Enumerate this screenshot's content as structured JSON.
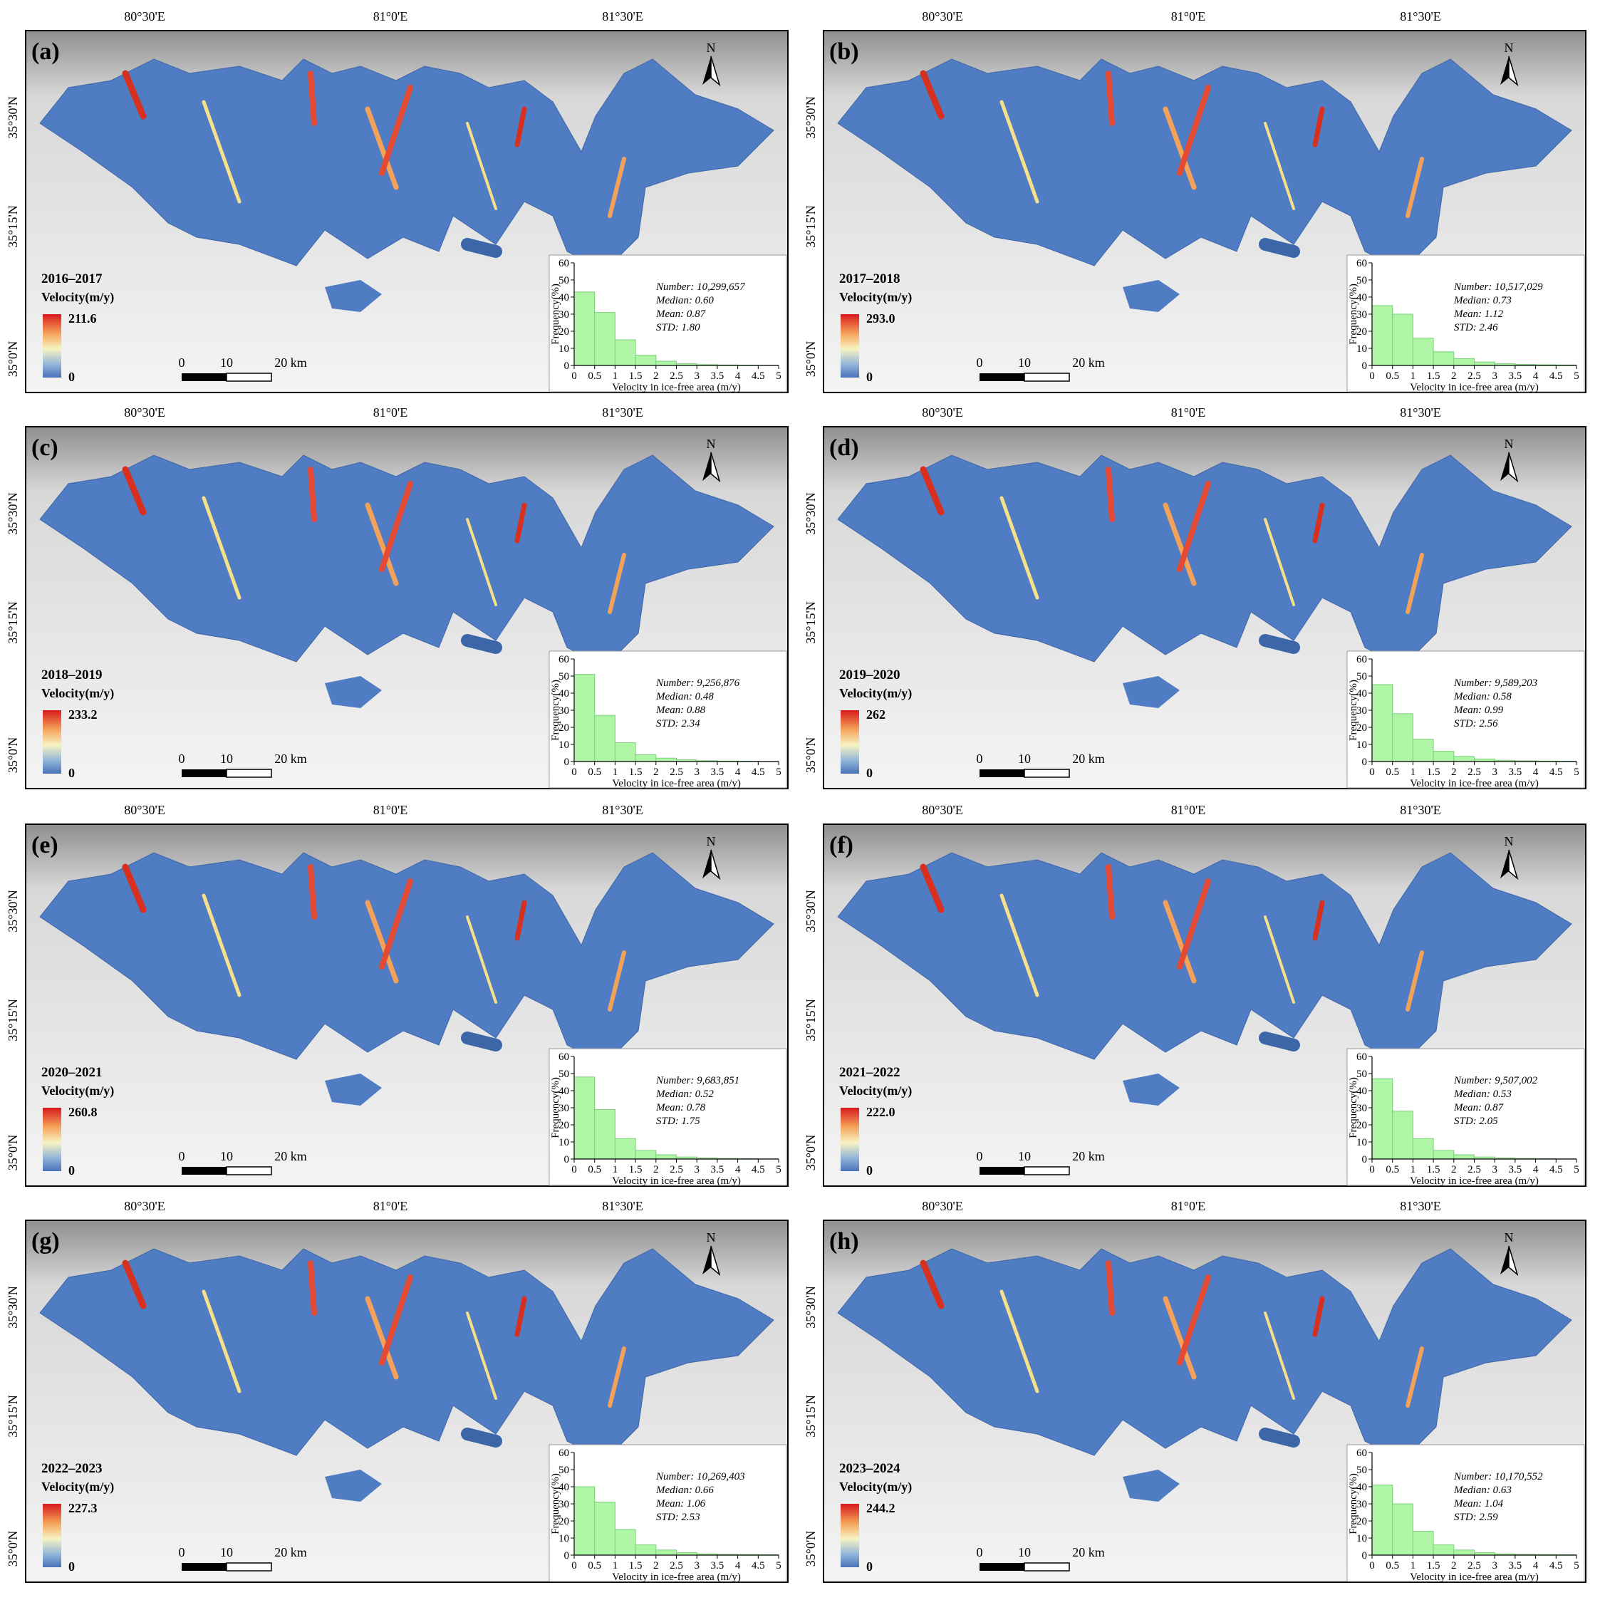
{
  "figure": {
    "coordinates": {
      "lon": [
        "80°30'E",
        "81°0'E",
        "81°30'E"
      ],
      "lat": [
        "35°30'N",
        "35°15'N",
        "35°0'N"
      ]
    },
    "north": "N",
    "scale": [
      "0",
      "10",
      "20 km"
    ],
    "legend_title": "Velocity(m/y)",
    "legend_min": 0,
    "histogram_axes": {
      "xlabel": "Velocity in ice-free area (m/y)",
      "ylabel": "Frequency(%)",
      "bins": [
        0,
        0.5,
        1,
        1.5,
        2,
        2.5,
        3,
        3.5,
        4,
        4.5,
        5
      ],
      "xlim": [
        0,
        5
      ],
      "ylim": [
        0,
        60
      ],
      "xticks": [
        0,
        0.5,
        1,
        1.5,
        2,
        2.5,
        3,
        3.5,
        4,
        4.5,
        5
      ],
      "yticks": [
        0,
        10,
        20,
        30,
        40,
        50,
        60
      ]
    },
    "panels": [
      {
        "label": "(a)",
        "period": "2016–2017",
        "legend_max": 211.6,
        "stats": [
          "Number: 10,299,657",
          "Median: 0.60",
          "Mean: 0.87",
          "STD: 1.80"
        ],
        "histogram": {
          "type": "bar",
          "values": [
            43,
            31,
            15,
            6,
            2.5,
            1,
            0.5,
            0.3,
            0.2,
            0.1
          ]
        }
      },
      {
        "label": "(b)",
        "period": "2017–2018",
        "legend_max": {
          "value": 293.0,
          "label": "293.0"
        },
        "stats": [
          "Number: 10,517,029",
          "Median: 0.73",
          "Mean: 1.12",
          "STD: 2.46"
        ],
        "histogram": {
          "type": "bar",
          "values": [
            35,
            30,
            16,
            8,
            4,
            2,
            1,
            0.6,
            0.4,
            0.3
          ]
        }
      },
      {
        "label": "(c)",
        "period": "2018–2019",
        "legend_max": 233.2,
        "stats": [
          "Number: 9,256,876",
          "Median: 0.48",
          "Mean: 0.88",
          "STD: 2.34"
        ],
        "histogram": {
          "type": "bar",
          "values": [
            51,
            27,
            11,
            4,
            2,
            1,
            0.5,
            0.3,
            0.2,
            0.1
          ]
        }
      },
      {
        "label": "(d)",
        "period": "2019–2020",
        "legend_max": 262,
        "stats": [
          "Number: 9,589,203",
          "Median: 0.58",
          "Mean: 0.99",
          "STD: 2.56"
        ],
        "histogram": {
          "type": "bar",
          "values": [
            45,
            28,
            13,
            6,
            3,
            1.5,
            0.7,
            0.4,
            0.3,
            0.2
          ]
        }
      },
      {
        "label": "(e)",
        "period": "2020–2021",
        "legend_max": 260.8,
        "stats": [
          "Number: 9,683,851",
          "Median: 0.52",
          "Mean: 0.78",
          "STD: 1.75"
        ],
        "histogram": {
          "type": "bar",
          "values": [
            48,
            29,
            12,
            5,
            2.5,
            1.2,
            0.6,
            0.3,
            0.2,
            0.1
          ]
        }
      },
      {
        "label": "(f)",
        "period": "2021–2022",
        "legend_max": {
          "value": 222.0,
          "label": "222.0"
        },
        "stats": [
          "Number: 9,507,002",
          "Median: 0.53",
          "Mean: 0.87",
          "STD: 2.05"
        ],
        "histogram": {
          "type": "bar",
          "values": [
            47,
            28,
            12,
            5,
            2.5,
            1.2,
            0.6,
            0.3,
            0.2,
            0.1
          ]
        }
      },
      {
        "label": "(g)",
        "period": "2022–2023",
        "legend_max": 227.3,
        "stats": [
          "Number: 10,269,403",
          "Median: 0.66",
          "Mean: 1.06",
          "STD: 2.53"
        ],
        "histogram": {
          "type": "bar",
          "values": [
            40,
            31,
            15,
            6,
            3,
            1.5,
            0.7,
            0.4,
            0.3,
            0.2
          ]
        }
      },
      {
        "label": "(h)",
        "period": "2023–2024",
        "legend_max": 244.2,
        "stats": [
          "Number: 10,170,552",
          "Median: 0.63",
          "Mean: 1.04",
          "STD: 2.59"
        ],
        "histogram": {
          "type": "bar",
          "values": [
            41,
            30,
            14,
            6,
            3,
            1.5,
            0.7,
            0.4,
            0.3,
            0.2
          ]
        }
      }
    ]
  }
}
